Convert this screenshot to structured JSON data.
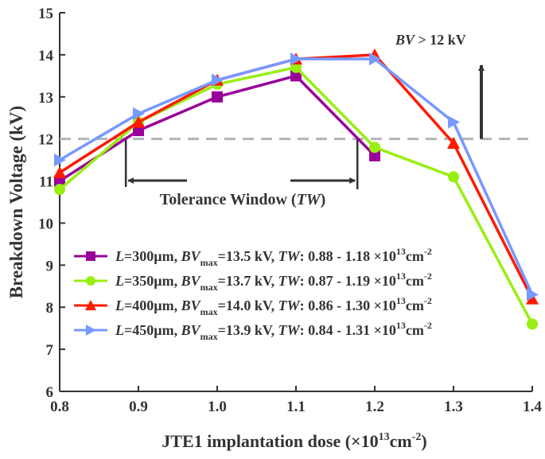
{
  "chart_data": {
    "type": "line",
    "xlabel": "JTE1  implantation dose  (×10",
    "xlabel_sup": "13",
    "xlabel_unit": "cm",
    "xlabel_unit_sup": "-2",
    "xlabel_close": ")",
    "ylabel": "Breakdown Voltage (kV)",
    "xlim": [
      0.8,
      1.4
    ],
    "ylim": [
      6,
      15
    ],
    "xticks": [
      "0.8",
      "0.9",
      "1.0",
      "1.1",
      "1.2",
      "1.3",
      "1.4"
    ],
    "yticks": [
      "6",
      "7",
      "8",
      "9",
      "10",
      "11",
      "12",
      "13",
      "14",
      "15"
    ],
    "grid": false,
    "legend_placement": "lower-left",
    "reference_line": {
      "y": 12,
      "color": "#b0b6b8",
      "style": "dashed"
    },
    "annotations": {
      "bv_label_italic": "BV",
      "bv_label_rest": " > 12 kV",
      "tw_label": "Tolerance Window (",
      "tw_label_italic": "TW",
      "tw_label_close": ")",
      "tw_range": [
        0.884,
        1.178
      ]
    },
    "series": [
      {
        "name": "L=300µm",
        "color": "#990099",
        "marker": "square",
        "x": [
          0.8,
          0.9,
          1.0,
          1.1,
          1.2
        ],
        "y": [
          11.0,
          12.2,
          13.0,
          13.5,
          11.6
        ],
        "legend": {
          "l": "L",
          "len": "=300µm, ",
          "bv": "BV",
          "sub": "max",
          "bvval": "=13.5 kV, ",
          "tw": "TW",
          "range": ": 0.88 - 1.18 ×10",
          "sup": "13",
          "unit": "cm",
          "unitsup": "-2"
        }
      },
      {
        "name": "L=350µm",
        "color": "#99ee11",
        "marker": "circle",
        "x": [
          0.8,
          0.9,
          1.0,
          1.1,
          1.2,
          1.3,
          1.4
        ],
        "y": [
          10.8,
          12.4,
          13.3,
          13.7,
          11.8,
          11.1,
          7.6
        ],
        "legend": {
          "l": "L",
          "len": "=350µm, ",
          "bv": "BV",
          "sub": "max",
          "bvval": "=13.7 kV, ",
          "tw": "TW",
          "range": ": 0.87 - 1.19 ×10",
          "sup": "13",
          "unit": "cm",
          "unitsup": "-2"
        }
      },
      {
        "name": "L=400µm",
        "color": "#ff1a00",
        "marker": "triangle-up",
        "x": [
          0.8,
          0.9,
          1.0,
          1.1,
          1.2,
          1.3,
          1.4
        ],
        "y": [
          11.2,
          12.4,
          13.4,
          13.9,
          14.0,
          11.9,
          8.2
        ],
        "legend": {
          "l": "L",
          "len": "=400µm, ",
          "bv": "BV",
          "sub": "max",
          "bvval": "=14.0 kV, ",
          "tw": "TW",
          "range": ": 0.86 - 1.30 ×10",
          "sup": "13",
          "unit": "cm",
          "unitsup": "-2"
        }
      },
      {
        "name": "L=450µm",
        "color": "#7799ff",
        "marker": "triangle-right",
        "x": [
          0.8,
          0.9,
          1.0,
          1.1,
          1.2,
          1.3,
          1.4
        ],
        "y": [
          11.5,
          12.6,
          13.4,
          13.9,
          13.9,
          12.4,
          8.3
        ],
        "legend": {
          "l": "L",
          "len": "=450µm, ",
          "bv": "BV",
          "sub": "max",
          "bvval": "=13.9 kV, ",
          "tw": "TW",
          "range": ": 0.84 - 1.31 ×10",
          "sup": "13",
          "unit": "cm",
          "unitsup": "-2"
        }
      }
    ]
  }
}
